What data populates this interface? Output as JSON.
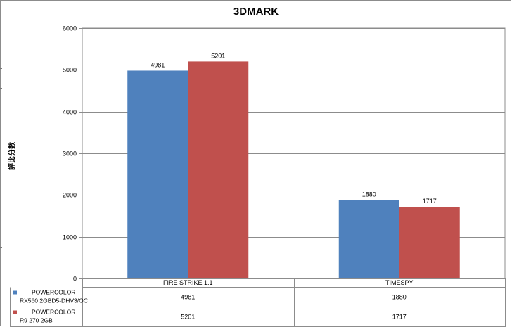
{
  "chart_data": {
    "type": "bar",
    "title": "3DMARK",
    "ylabel": "評比分數",
    "xlabel": "",
    "categories": [
      "FIRE STRIKE 1.1",
      "TIMESPY"
    ],
    "series": [
      {
        "name_lines": [
          "POWERCOLOR",
          "RX560 2GBD5-DHV3/OC"
        ],
        "color": "#4f81bd",
        "values": [
          4981,
          1880
        ]
      },
      {
        "name_lines": [
          "POWERCOLOR",
          "R9 270 2GB"
        ],
        "color": "#c0504d",
        "values": [
          5201,
          1717
        ]
      }
    ],
    "ylim": [
      0,
      6000
    ],
    "yticks": [
      0,
      1000,
      2000,
      3000,
      4000,
      5000,
      6000
    ],
    "grid": true,
    "legend": "data-table"
  }
}
